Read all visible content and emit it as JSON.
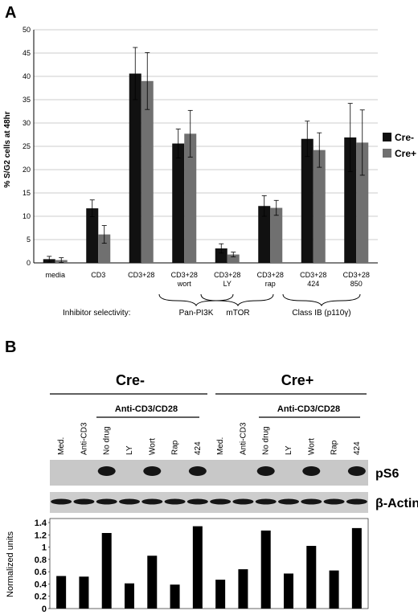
{
  "panel_a": {
    "letter": "A",
    "inhibitor_label": "Inhibitor selectivity:",
    "selectivity_groups": [
      "Pan-PI3K",
      "mTOR",
      "Class IB (p110γ)"
    ]
  },
  "panel_b": {
    "letter": "B",
    "groups": [
      "Cre-",
      "Cre+"
    ],
    "stim_label": "Anti-CD3/CD28",
    "lanes": [
      "Med.",
      "Anti-CD3",
      "No drug",
      "LY",
      "Wort",
      "Rap",
      "424",
      "Med.",
      "Anti-CD3",
      "No drug",
      "LY",
      "Wort",
      "Rap",
      "424"
    ],
    "blots": [
      "pS6",
      "β-Actin"
    ],
    "pS6_band_present": [
      false,
      false,
      true,
      false,
      true,
      false,
      true,
      false,
      false,
      true,
      false,
      true,
      false,
      true
    ]
  },
  "colors": {
    "cre_minus": "#111111",
    "cre_plus": "#707070",
    "band": "#151515"
  },
  "chart_data": [
    {
      "type": "bar",
      "title": "",
      "ylabel": "% S/G2 cells at 48hr",
      "xlabel": "",
      "ylim": [
        0,
        50
      ],
      "yticks": [
        0,
        5,
        10,
        15,
        20,
        25,
        30,
        35,
        40,
        45,
        50
      ],
      "grid": true,
      "legend": "right",
      "categories": [
        [
          "media"
        ],
        [
          "CD3"
        ],
        [
          "CD3+28"
        ],
        [
          "CD3+28",
          "wort"
        ],
        [
          "CD3+28",
          "LY"
        ],
        [
          "CD3+28",
          "rap"
        ],
        [
          "CD3+28",
          "424"
        ],
        [
          "CD3+28",
          "850"
        ]
      ],
      "series": [
        {
          "name": "Cre-",
          "values": [
            0.8,
            11.7,
            40.6,
            25.6,
            3.1,
            12.2,
            26.6,
            26.9
          ],
          "errors": [
            0.6,
            1.8,
            5.6,
            3.1,
            1.0,
            2.2,
            3.8,
            7.3
          ]
        },
        {
          "name": "Cre+",
          "values": [
            0.6,
            6.1,
            39.0,
            27.7,
            1.8,
            11.8,
            24.2,
            25.8
          ],
          "errors": [
            0.5,
            1.9,
            6.1,
            5.0,
            0.5,
            1.6,
            3.7,
            7.0
          ]
        }
      ]
    },
    {
      "type": "bar",
      "title": "",
      "ylabel": "Normalized units",
      "xlabel": "",
      "ylim": [
        0,
        1.4
      ],
      "yticks": [
        0,
        0.2,
        0.4,
        0.6,
        0.8,
        1,
        1.2,
        1.4
      ],
      "grid": false,
      "categories": [
        "Med.",
        "Anti-CD3",
        "No drug",
        "LY",
        "Wort",
        "Rap",
        "424",
        "Med.",
        "Anti-CD3",
        "No drug",
        "LY",
        "Wort",
        "Rap",
        "424"
      ],
      "values": [
        0.53,
        0.52,
        1.23,
        0.41,
        0.86,
        0.39,
        1.34,
        0.47,
        0.64,
        1.27,
        0.57,
        1.02,
        0.62,
        1.31
      ]
    }
  ]
}
